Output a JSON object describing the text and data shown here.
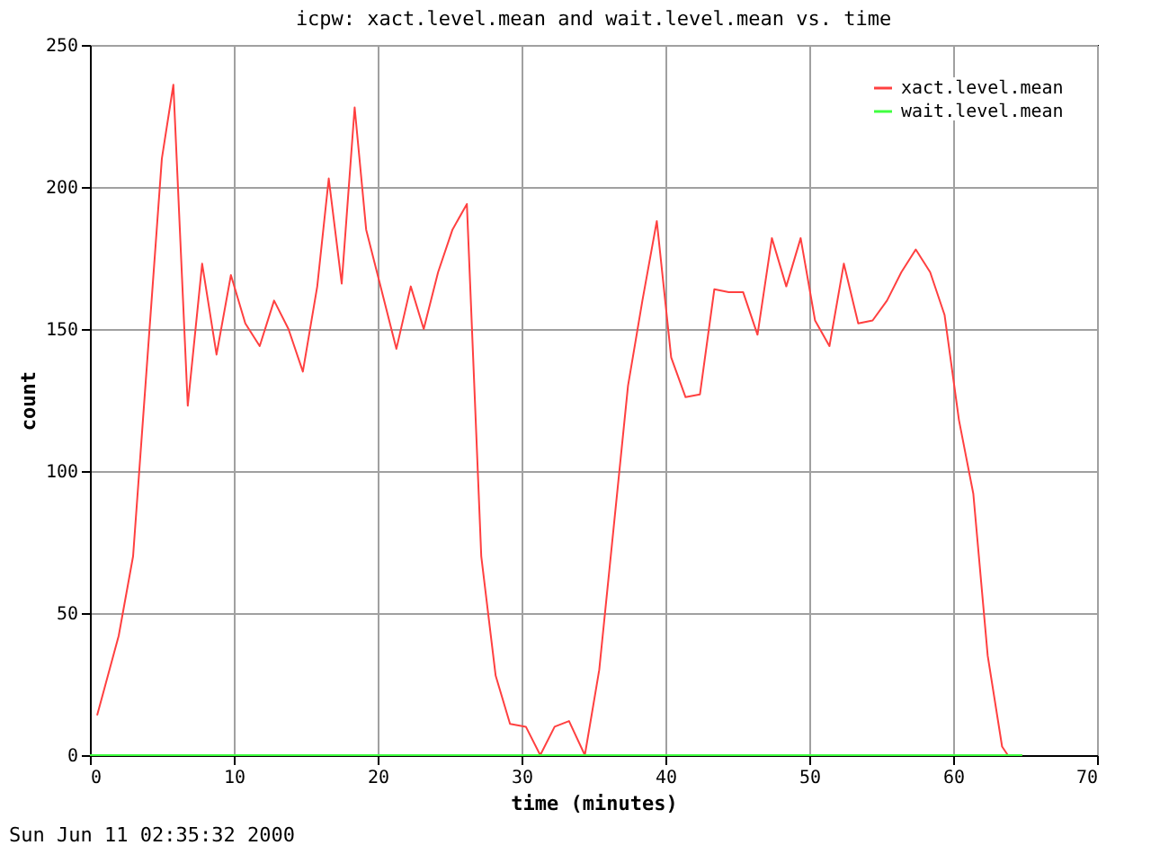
{
  "chart_data": {
    "type": "line",
    "title": "icpw: xact.level.mean and wait.level.mean vs. time",
    "xlabel": "time (minutes)",
    "ylabel": "count",
    "xlim": [
      0,
      70
    ],
    "xticks": [
      0,
      10,
      20,
      30,
      40,
      50,
      60,
      70
    ],
    "ylim": [
      0,
      250
    ],
    "yticks": [
      0,
      50,
      100,
      150,
      200,
      250
    ],
    "grid": true,
    "legend": "top right",
    "annotations": [
      "Sun Jun 11 02:35:32 2000"
    ],
    "series": [
      {
        "name": "xact.level.mean",
        "color": "#ff4040",
        "x": [
          0.5,
          2,
          3,
          4,
          5,
          5.8,
          6.8,
          7.8,
          8.8,
          9.8,
          10.8,
          11.8,
          12.8,
          13.8,
          14.8,
          15.8,
          16.6,
          17.5,
          18.4,
          19.2,
          20.2,
          21.3,
          22.3,
          23.2,
          24.2,
          25.2,
          26.2,
          27.2,
          28.2,
          29.2,
          30.3,
          31.3,
          32.3,
          33.3,
          34.4,
          35.4,
          36.4,
          37.4,
          38.4,
          39.4,
          40.4,
          41.4,
          42.4,
          43.4,
          44.4,
          45.4,
          46.4,
          47.4,
          48.4,
          49.4,
          50.4,
          51.4,
          52.4,
          53.4,
          54.4,
          55.4,
          56.4,
          57.4,
          58.4,
          59.4,
          60.4,
          61.4,
          62.4,
          63.4,
          63.8,
          64.8
        ],
        "values": [
          14,
          42,
          70,
          140,
          210,
          236,
          123,
          173,
          141,
          169,
          152,
          144,
          160,
          150,
          135,
          165,
          203,
          166,
          228,
          185,
          165,
          143,
          165,
          150,
          170,
          185,
          194,
          70,
          28,
          11,
          10,
          0,
          10,
          12,
          0,
          30,
          80,
          130,
          160,
          188,
          140,
          126,
          127,
          164,
          163,
          163,
          148,
          182,
          165,
          182,
          153,
          144,
          173,
          152,
          153,
          160,
          170,
          178,
          170,
          155,
          118,
          92,
          35,
          3,
          0,
          0
        ]
      },
      {
        "name": "wait.level.mean",
        "color": "#40ff40",
        "x": [
          0,
          64.8
        ],
        "values": [
          0,
          0
        ]
      }
    ]
  }
}
